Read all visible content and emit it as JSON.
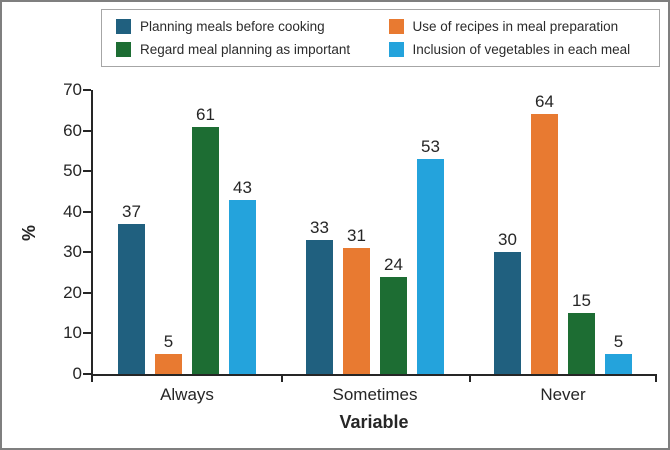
{
  "chart_data": {
    "type": "bar",
    "title": "",
    "xlabel": "Variable",
    "ylabel": "%",
    "ylim": [
      0,
      70
    ],
    "yticks": [
      0,
      10,
      20,
      30,
      40,
      50,
      60,
      70
    ],
    "categories": [
      "Always",
      "Sometimes",
      "Never"
    ],
    "series": [
      {
        "name": "Planning meals before cooking",
        "color": "#20607F",
        "values": [
          37,
          33,
          30
        ]
      },
      {
        "name": "Use of recipes in meal preparation",
        "color": "#E87A31",
        "values": [
          5,
          31,
          64
        ]
      },
      {
        "name": "Regard meal planning as important",
        "color": "#1D6D33",
        "values": [
          61,
          24,
          15
        ]
      },
      {
        "name": "Inclusion of vegetables in each meal",
        "color": "#24A3DC",
        "values": [
          43,
          53,
          5
        ]
      }
    ],
    "grid": false,
    "value_labels": true,
    "legend_position": "top",
    "legend_columns": 2
  },
  "colors": {
    "axis": "#262626",
    "text": "#262626",
    "frame_border": "#7F7F7F",
    "legend_border": "#A6A6A6",
    "background": "#FFFFFF"
  }
}
